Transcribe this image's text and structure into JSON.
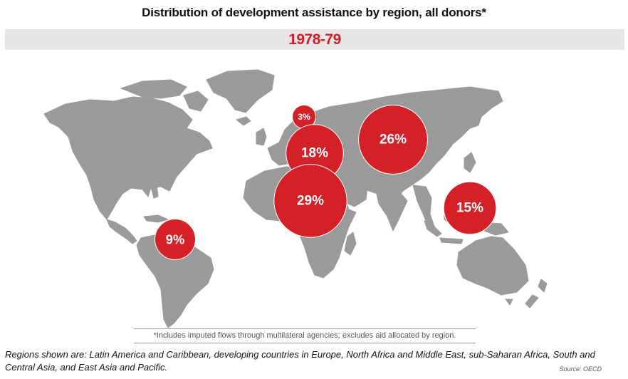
{
  "title": "Distribution of development assistance by region, all donors*",
  "period": "1978-79",
  "colors": {
    "land": "#9a9a9a",
    "bubble": "#d42027",
    "period_text": "#d41f2a",
    "period_band": "#e6e6e6"
  },
  "regions": [
    {
      "name": "Latin America and Caribbean",
      "share_pct": 9,
      "label": "9%"
    },
    {
      "name": "developing countries in Europe",
      "share_pct": 3,
      "label": "3%"
    },
    {
      "name": "North Africa and Middle East",
      "share_pct": 18,
      "label": "18%"
    },
    {
      "name": "sub-Saharan Africa",
      "share_pct": 29,
      "label": "29%"
    },
    {
      "name": "South and Central Asia",
      "share_pct": 26,
      "label": "26%"
    },
    {
      "name": "East Asia and Pacific",
      "share_pct": 15,
      "label": "15%"
    }
  ],
  "footnote": "*Includes imputed flows through multilateral agencies; excludes aid allocated by region.",
  "regions_note": "Regions shown are: Latin America and Caribbean, developing countries in Europe, North Africa and Middle East, sub-Saharan Africa, South and Central Asia, and East Asia and Pacific.",
  "source": "Source: OECD"
}
